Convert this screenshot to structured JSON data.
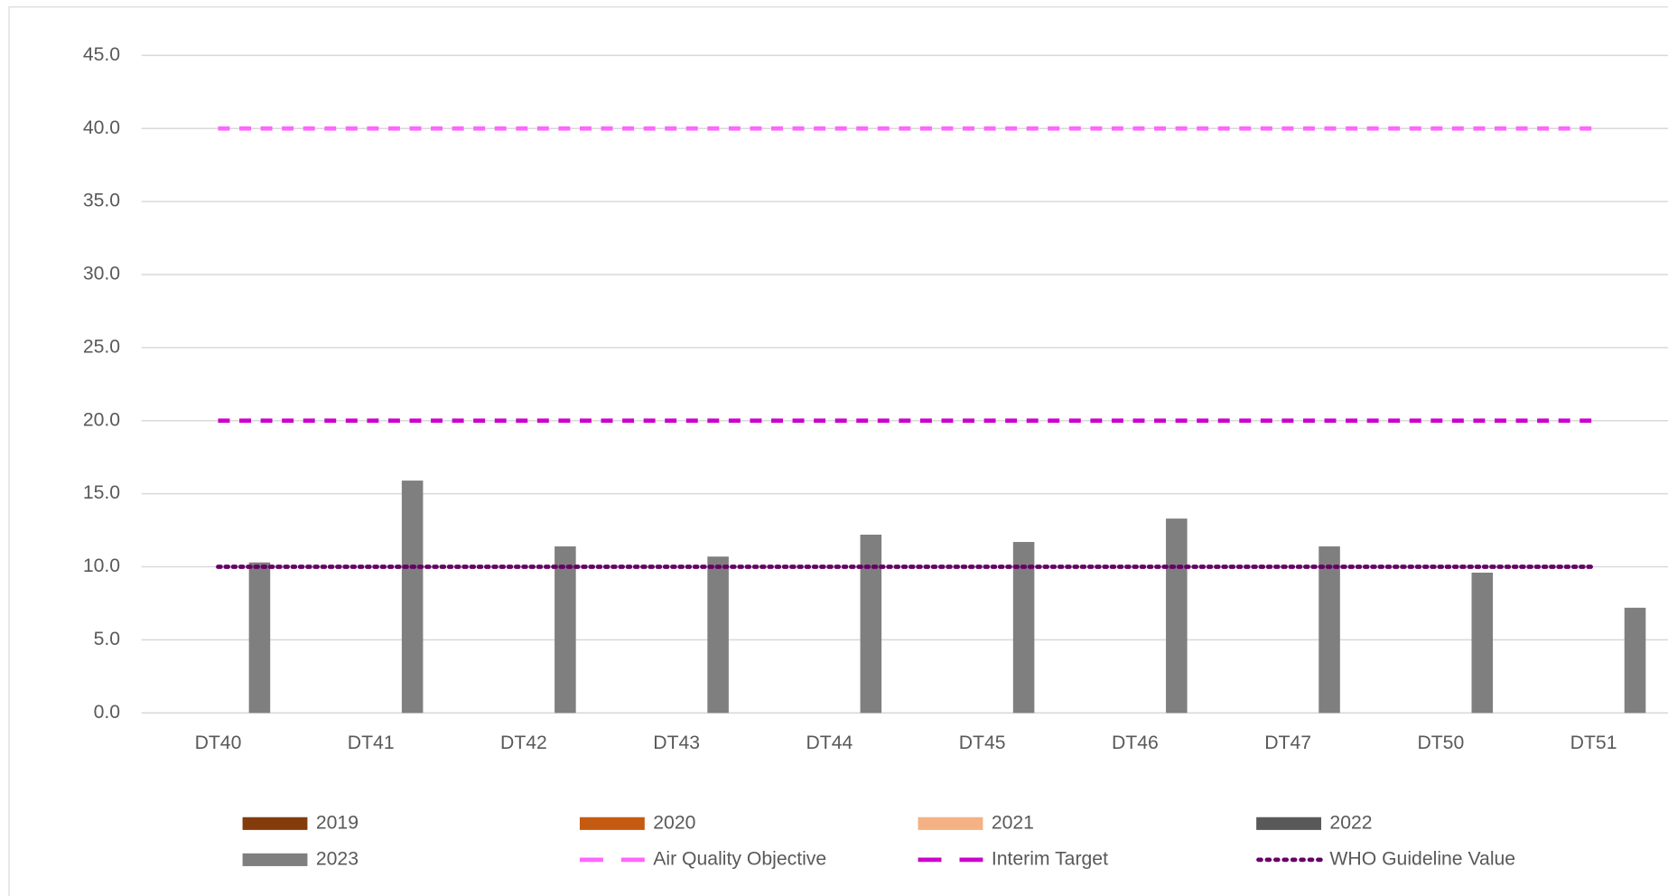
{
  "chart_data": {
    "type": "bar",
    "categories": [
      "DT40",
      "DT41",
      "DT42",
      "DT43",
      "DT44",
      "DT45",
      "DT46",
      "DT47",
      "DT50",
      "DT51"
    ],
    "series": [
      {
        "name": "2019",
        "type": "bar",
        "color": "#843c0c",
        "values": [
          null,
          null,
          null,
          null,
          null,
          null,
          null,
          null,
          null,
          null
        ]
      },
      {
        "name": "2020",
        "type": "bar",
        "color": "#c55a11",
        "values": [
          null,
          null,
          null,
          null,
          null,
          null,
          null,
          null,
          null,
          null
        ]
      },
      {
        "name": "2021",
        "type": "bar",
        "color": "#f4b183",
        "values": [
          null,
          null,
          null,
          null,
          null,
          null,
          null,
          null,
          null,
          null
        ]
      },
      {
        "name": "2022",
        "type": "bar",
        "color": "#595959",
        "values": [
          null,
          null,
          null,
          null,
          null,
          null,
          null,
          null,
          null,
          null
        ]
      },
      {
        "name": "2023",
        "type": "bar",
        "color": "#7f7f7f",
        "values": [
          10.3,
          15.9,
          11.4,
          10.7,
          12.2,
          11.7,
          13.3,
          11.4,
          9.6,
          7.2
        ]
      },
      {
        "name": "Air Quality Objective",
        "type": "line",
        "dash": "dashed",
        "color": "#ff66ff",
        "values": [
          40,
          40,
          40,
          40,
          40,
          40,
          40,
          40,
          40,
          40
        ]
      },
      {
        "name": "Interim Target",
        "type": "line",
        "dash": "dashed",
        "color": "#cc00cc",
        "values": [
          20,
          20,
          20,
          20,
          20,
          20,
          20,
          20,
          20,
          20
        ]
      },
      {
        "name": "WHO Guideline Value",
        "type": "line",
        "dash": "dotted",
        "color": "#660066",
        "values": [
          10,
          10,
          10,
          10,
          10,
          10,
          10,
          10,
          10,
          10
        ]
      }
    ],
    "ylim": [
      0,
      45
    ],
    "yticks": [
      {
        "value": 0,
        "label": "0.0"
      },
      {
        "value": 5,
        "label": "5.0"
      },
      {
        "value": 10,
        "label": "10.0"
      },
      {
        "value": 15,
        "label": "15.0"
      },
      {
        "value": 20,
        "label": "20.0"
      },
      {
        "value": 25,
        "label": "25.0"
      },
      {
        "value": 30,
        "label": "30.0"
      },
      {
        "value": 35,
        "label": "35.0"
      },
      {
        "value": 40,
        "label": "40.0"
      },
      {
        "value": 45,
        "label": "45.0"
      }
    ],
    "grid": true,
    "legend": "bottom"
  }
}
